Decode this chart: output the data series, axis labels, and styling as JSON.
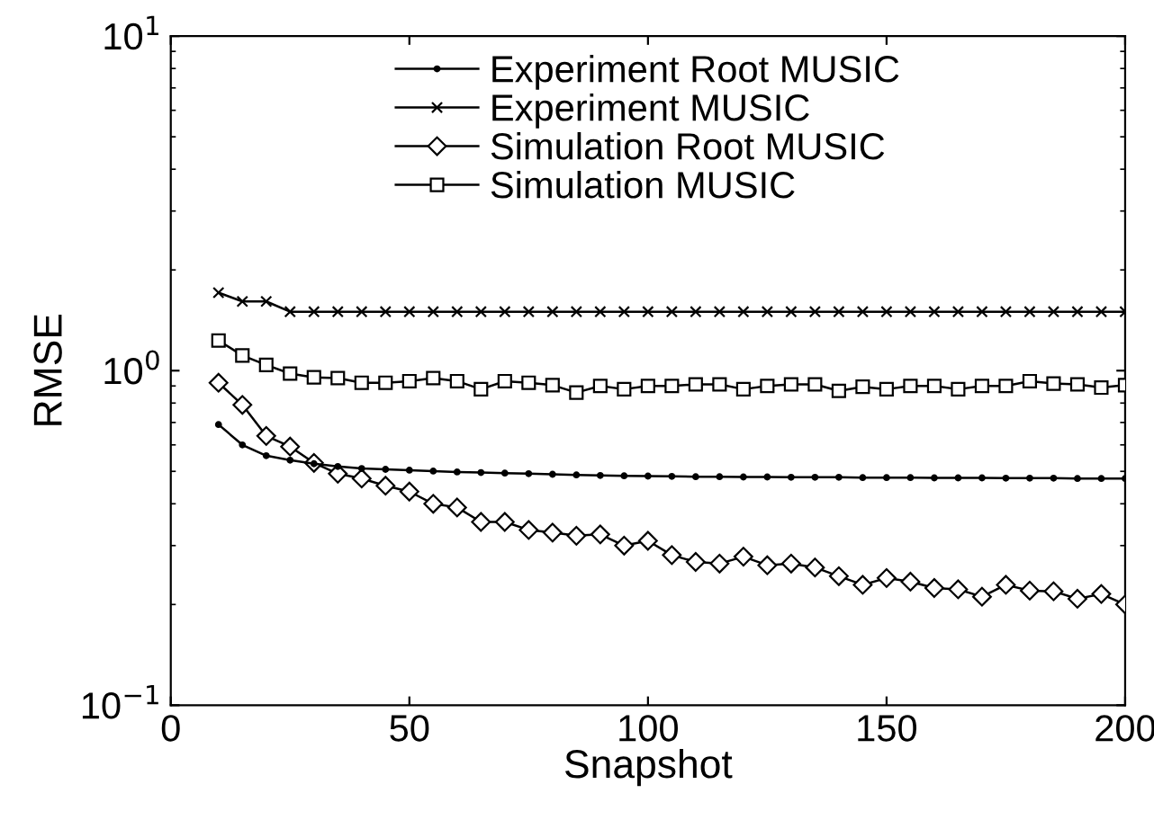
{
  "chart_data": {
    "type": "line",
    "xlabel": "Snapshot",
    "ylabel": "RMSE",
    "log": "y",
    "xlim": [
      0,
      200
    ],
    "ylim": [
      0.1,
      10
    ],
    "xticks": [
      0,
      50,
      100,
      150,
      200
    ],
    "yticks": [
      {
        "value": 0.1,
        "label": "10$^{−1}$"
      },
      {
        "value": 1,
        "label": "10$^{0}$"
      },
      {
        "value": 10,
        "label": "10$^{1}$"
      }
    ],
    "grid": false,
    "legend": "top",
    "line_style": "solid",
    "x": [
      10,
      15,
      20,
      25,
      30,
      35,
      40,
      45,
      50,
      55,
      60,
      65,
      70,
      75,
      80,
      85,
      90,
      95,
      100,
      105,
      110,
      115,
      120,
      125,
      130,
      135,
      140,
      145,
      150,
      155,
      160,
      165,
      170,
      175,
      180,
      185,
      190,
      195,
      200
    ],
    "series": [
      {
        "name": "Experiment Root MUSIC",
        "color": "#000000",
        "marker": "circle",
        "values": [
          0.69,
          0.6,
          0.557,
          0.54,
          0.527,
          0.517,
          0.51,
          0.507,
          0.504,
          0.501,
          0.498,
          0.496,
          0.494,
          0.492,
          0.49,
          0.488,
          0.486,
          0.485,
          0.484,
          0.483,
          0.482,
          0.482,
          0.481,
          0.481,
          0.48,
          0.48,
          0.48,
          0.479,
          0.479,
          0.479,
          0.478,
          0.478,
          0.478,
          0.477,
          0.477,
          0.477,
          0.476,
          0.476,
          0.476
        ]
      },
      {
        "name": "Experiment MUSIC",
        "color": "#000000",
        "marker": "cross",
        "values": [
          1.71,
          1.61,
          1.61,
          1.5,
          1.5,
          1.5,
          1.5,
          1.5,
          1.5,
          1.5,
          1.5,
          1.5,
          1.5,
          1.5,
          1.5,
          1.5,
          1.5,
          1.5,
          1.5,
          1.5,
          1.5,
          1.5,
          1.5,
          1.5,
          1.5,
          1.5,
          1.5,
          1.5,
          1.5,
          1.5,
          1.5,
          1.5,
          1.5,
          1.5,
          1.5,
          1.5,
          1.5,
          1.5,
          1.5
        ]
      },
      {
        "name": "Simulation Root MUSIC",
        "color": "#000000",
        "marker": "diamond",
        "values": [
          0.92,
          0.79,
          0.638,
          0.593,
          0.53,
          0.492,
          0.476,
          0.453,
          0.435,
          0.4,
          0.39,
          0.353,
          0.353,
          0.334,
          0.328,
          0.321,
          0.324,
          0.3,
          0.31,
          0.281,
          0.268,
          0.265,
          0.278,
          0.262,
          0.265,
          0.258,
          0.243,
          0.229,
          0.24,
          0.234,
          0.224,
          0.222,
          0.211,
          0.229,
          0.22,
          0.219,
          0.208,
          0.215,
          0.2
        ]
      },
      {
        "name": "Simulation MUSIC",
        "color": "#000000",
        "marker": "square",
        "values": [
          1.23,
          1.11,
          1.04,
          0.98,
          0.955,
          0.95,
          0.92,
          0.92,
          0.93,
          0.95,
          0.93,
          0.88,
          0.93,
          0.92,
          0.905,
          0.86,
          0.9,
          0.88,
          0.9,
          0.9,
          0.91,
          0.91,
          0.88,
          0.9,
          0.91,
          0.91,
          0.87,
          0.895,
          0.88,
          0.9,
          0.9,
          0.88,
          0.9,
          0.9,
          0.93,
          0.915,
          0.91,
          0.89,
          0.905
        ]
      }
    ]
  }
}
